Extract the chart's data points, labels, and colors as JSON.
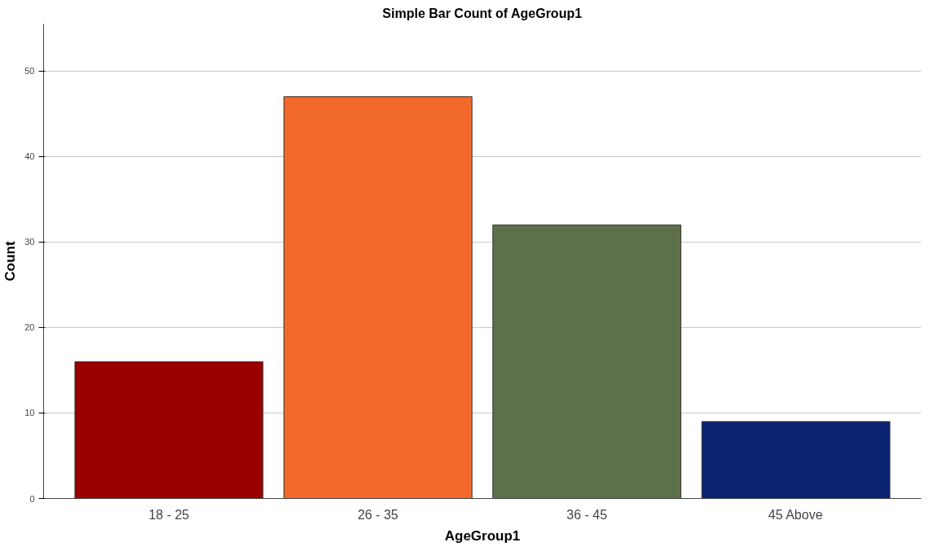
{
  "chart_data": {
    "type": "bar",
    "title": "Simple Bar Count of AgeGroup1",
    "xlabel": "AgeGroup1",
    "ylabel": "Count",
    "categories": [
      "18 - 25",
      "26 - 35",
      "36 - 45",
      "45 Above"
    ],
    "values": [
      16,
      47,
      32,
      9
    ],
    "colors": [
      "#990000",
      "#f26a2b",
      "#5d7049",
      "#0a2472"
    ],
    "ylim": [
      0,
      55.5
    ],
    "yticks": [
      0,
      10,
      20,
      30,
      40,
      50
    ],
    "grid": "y"
  }
}
